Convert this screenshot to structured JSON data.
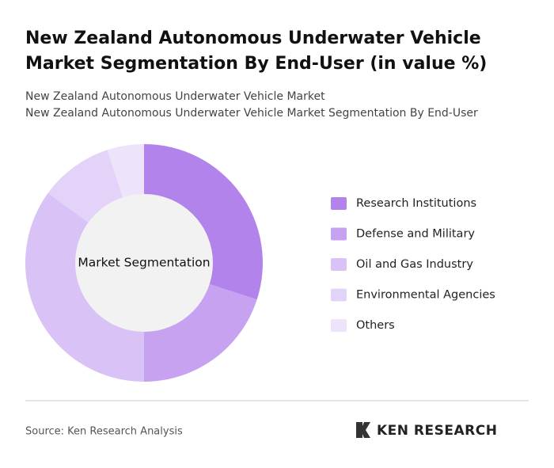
{
  "chart_data": {
    "type": "pie",
    "title": "New Zealand Autonomous Underwater Vehicle Market Segmentation By End-User (in value %)",
    "subtitle_lines": [
      "New Zealand Autonomous Underwater Vehicle Market",
      "New Zealand Autonomous Underwater Vehicle Market Segmentation By End-User"
    ],
    "center_label": "Market Segmentation",
    "categories": [
      "Research Institutions",
      "Defense and Military",
      "Oil and Gas Industry",
      "Environmental Agencies",
      "Others"
    ],
    "values": [
      30,
      20,
      35,
      10,
      5
    ],
    "colors": [
      "#b383ec",
      "#c6a2f1",
      "#d9c2f6",
      "#e3d3f8",
      "#ede3fa"
    ],
    "source": "Source: Ken Research Analysis",
    "logo": "KEN RESEARCH"
  }
}
